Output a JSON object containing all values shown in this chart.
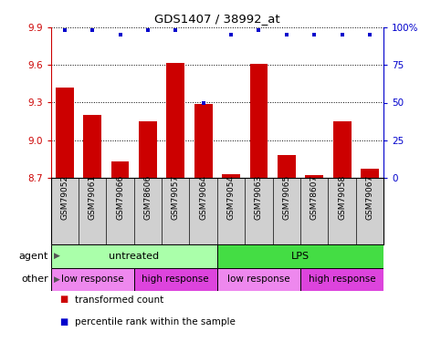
{
  "title": "GDS1407 / 38992_at",
  "samples": [
    "GSM79052",
    "GSM79061",
    "GSM79066",
    "GSM78606",
    "GSM79057",
    "GSM79064",
    "GSM79054",
    "GSM79063",
    "GSM79065",
    "GSM78607",
    "GSM79058",
    "GSM79067"
  ],
  "bar_values": [
    9.42,
    9.2,
    8.83,
    9.15,
    9.62,
    9.29,
    8.73,
    9.61,
    8.88,
    8.72,
    9.15,
    8.77
  ],
  "percentile_values": [
    98,
    98,
    95,
    98,
    98,
    50,
    95,
    98,
    95,
    95,
    95,
    95
  ],
  "ymin": 8.7,
  "ymax": 9.9,
  "yticks": [
    8.7,
    9.0,
    9.3,
    9.6,
    9.9
  ],
  "y2ticks": [
    0,
    25,
    50,
    75,
    100
  ],
  "bar_color": "#cc0000",
  "dot_color": "#0000cc",
  "agent_groups": [
    {
      "label": "untreated",
      "start": 0,
      "end": 6,
      "color": "#aaffaa"
    },
    {
      "label": "LPS",
      "start": 6,
      "end": 12,
      "color": "#44dd44"
    }
  ],
  "other_groups": [
    {
      "label": "low response",
      "start": 0,
      "end": 3,
      "color": "#ee88ee"
    },
    {
      "label": "high response",
      "start": 3,
      "end": 6,
      "color": "#dd44dd"
    },
    {
      "label": "low response",
      "start": 6,
      "end": 9,
      "color": "#ee88ee"
    },
    {
      "label": "high response",
      "start": 9,
      "end": 12,
      "color": "#dd44dd"
    }
  ],
  "legend_bar_label": "transformed count",
  "legend_dot_label": "percentile rank within the sample",
  "agent_label": "agent",
  "other_label": "other",
  "background_color": "#ffffff"
}
